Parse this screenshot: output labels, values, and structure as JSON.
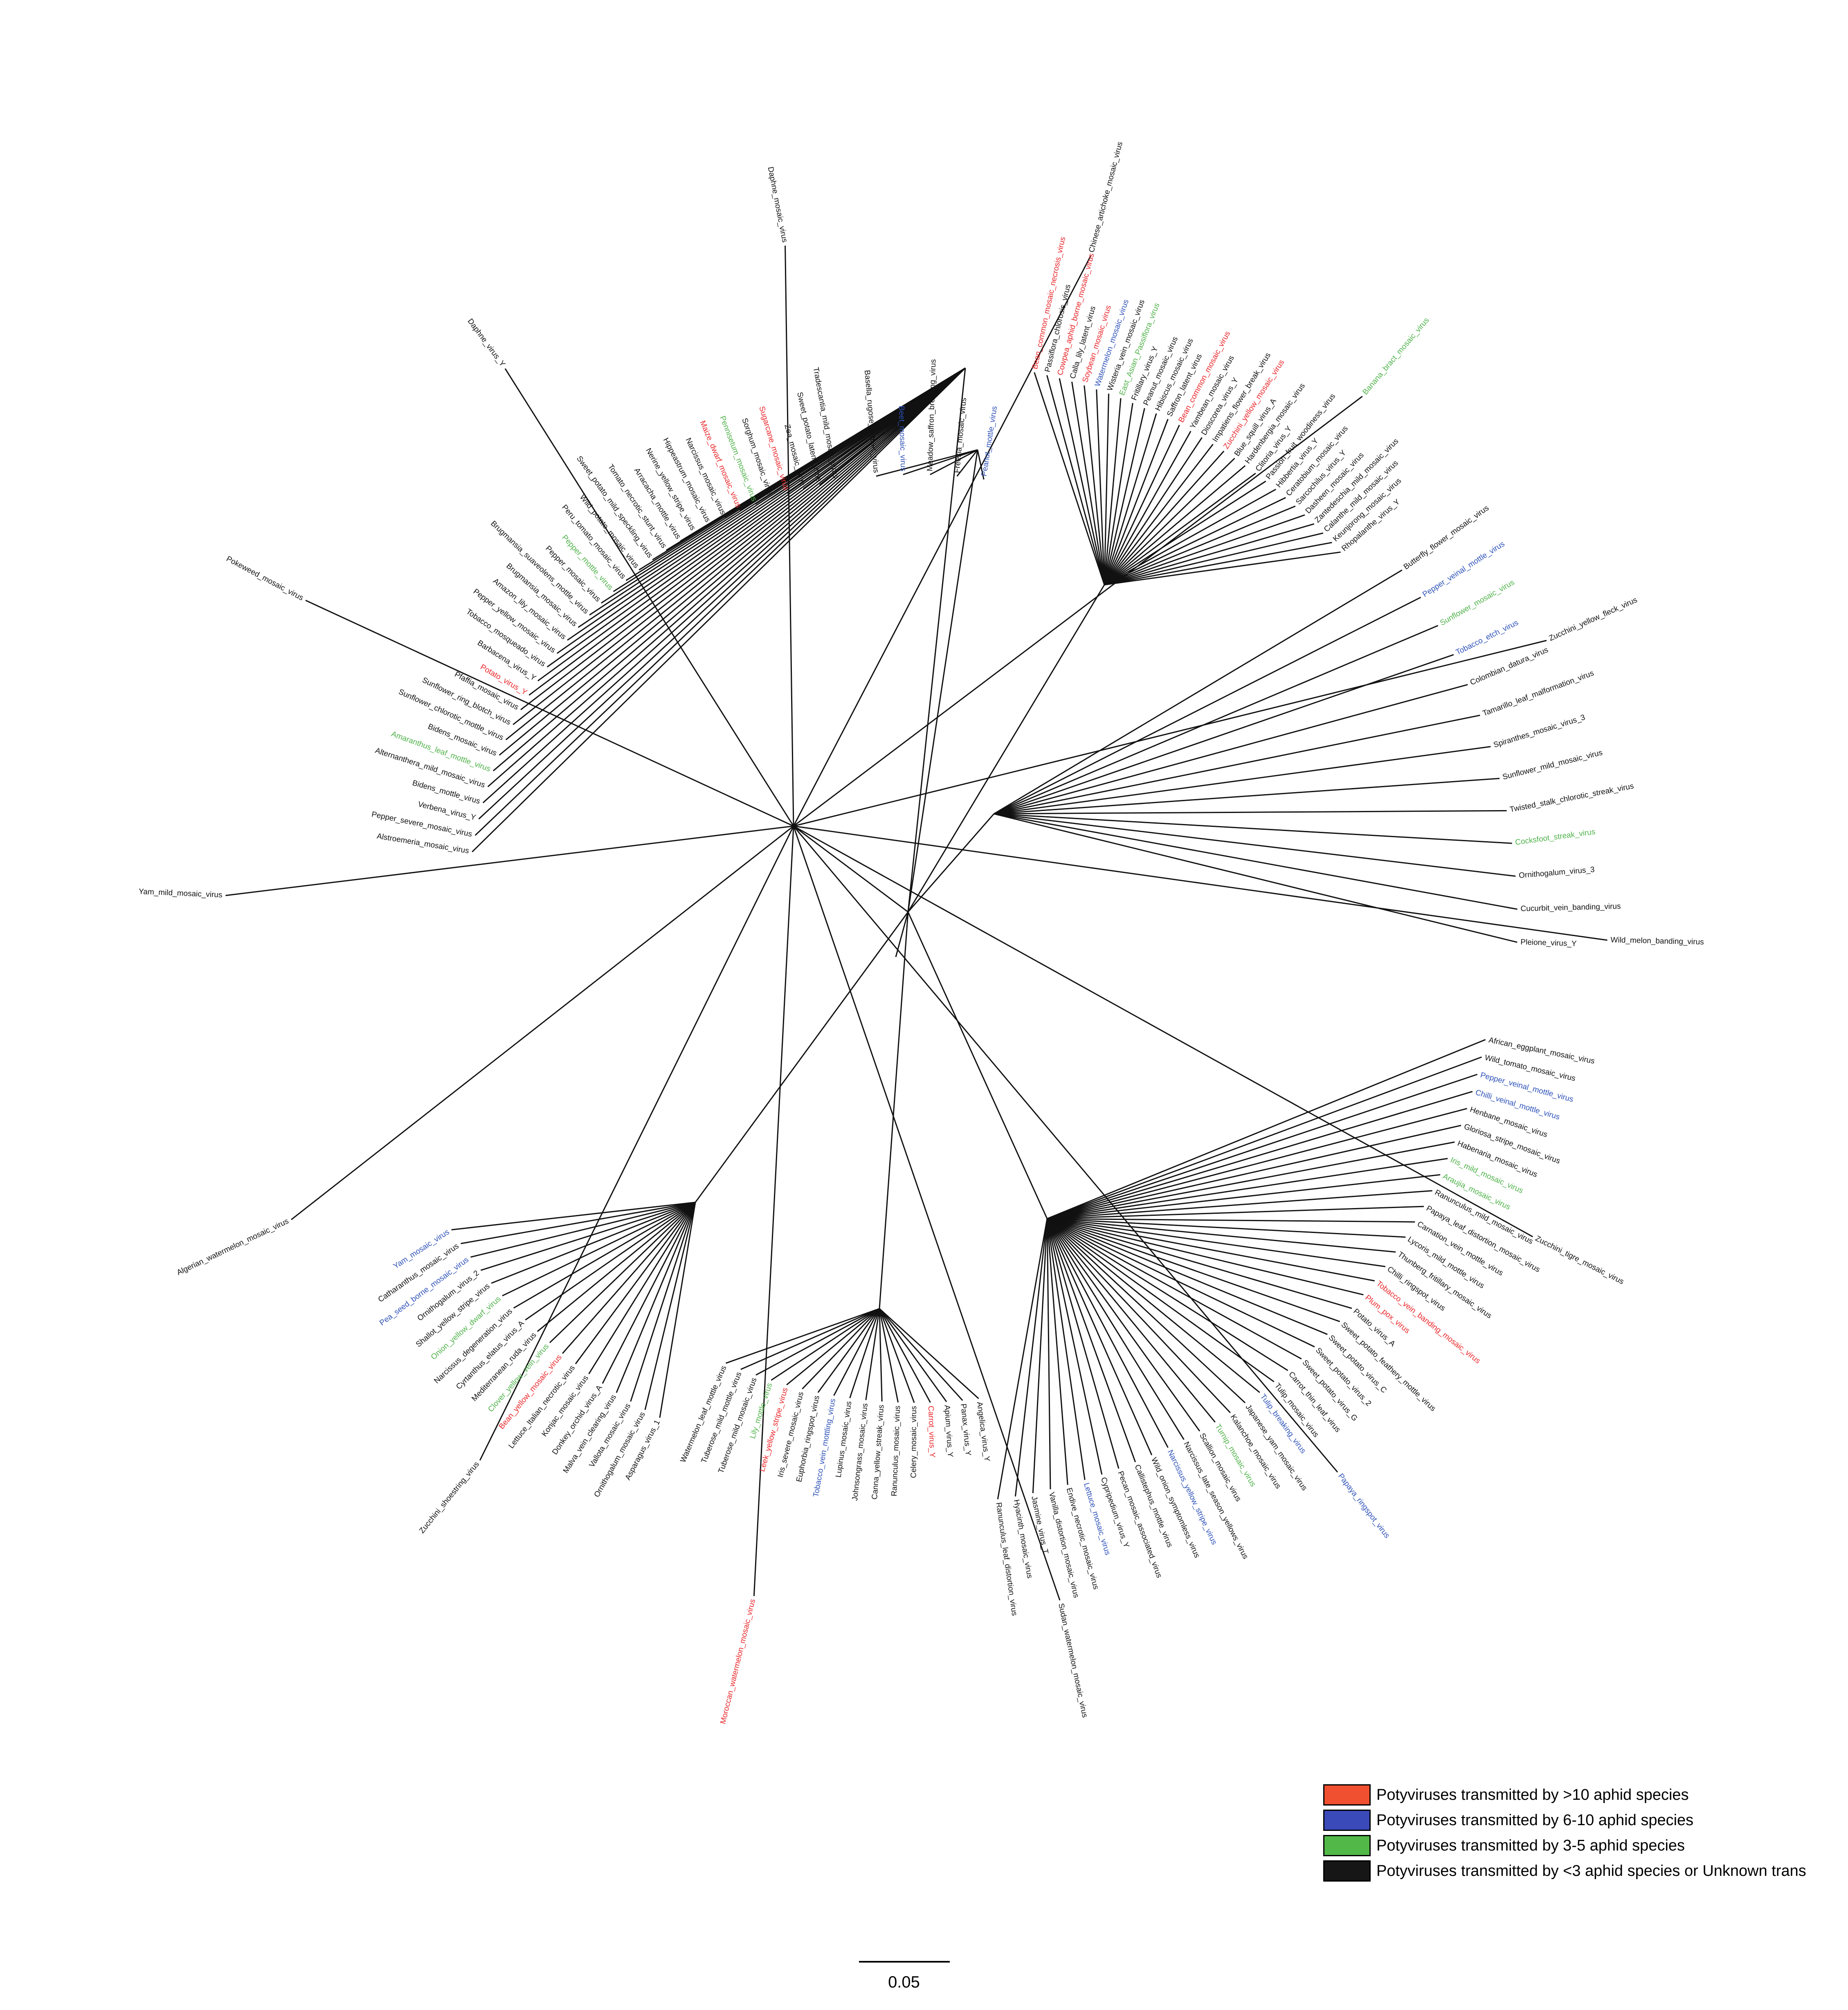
{
  "colors": {
    "red": "#e8262a",
    "blue": "#2e52b8",
    "green": "#4fb24a",
    "black": "#111111"
  },
  "legend": [
    {
      "label": "Potyviruses transmitted by >10 aphid species",
      "color": "#f0502f"
    },
    {
      "label": "Potyviruses transmitted by 6-10 aphid species",
      "color": "#3a4ab8"
    },
    {
      "label": "Potyviruses transmitted by 3-5 aphid species",
      "color": "#52b848"
    },
    {
      "label": "Potyviruses transmitted by <3 aphid species or Unknown trans",
      "color": "#161616"
    }
  ],
  "scale_bar": {
    "label": "0.05"
  },
  "clades": [
    {
      "name": "top-left",
      "leaves": [
        [
          "Tradescantia_mild_mosaic_virus",
          "black"
        ],
        [
          "Sweet_potato_latent_virus",
          "black"
        ],
        [
          "Zea_mosaic_virus",
          "black"
        ],
        [
          "Sugarcane_mosaic_virus",
          "red"
        ],
        [
          "Sorghum_mosaic_virus",
          "black"
        ],
        [
          "Pennisetum_mosaic_virus",
          "green"
        ],
        [
          "Maize_dwarf_mosaic_virus",
          "red"
        ],
        [
          "Narcissus_mosaic_virus",
          "black"
        ],
        [
          "Hippeastrum_mosaic_virus",
          "black"
        ],
        [
          "Nerine_yellow_stripe_virus",
          "black"
        ],
        [
          "Arracacha_mottle_virus",
          "black"
        ],
        [
          "Tomato_necrotic_stunt_virus",
          "black"
        ],
        [
          "Sweet_potato_mild_speckling_virus",
          "black"
        ],
        [
          "Wild_potato_mosaic_virus",
          "black"
        ],
        [
          "Peru_tomato_mosaic_virus",
          "black"
        ],
        [
          "Pepper_mottle_virus",
          "green"
        ],
        [
          "Pepper_mosaic_virus",
          "black"
        ],
        [
          "Brugmansia_suaveolens_mottle_virus",
          "black"
        ],
        [
          "Brugmansia_mosaic_virus",
          "black"
        ],
        [
          "Amazon_lily_mosaic_virus",
          "black"
        ],
        [
          "Pepper_yellow_mosaic_virus",
          "black"
        ],
        [
          "Tobacco_mosqueado_virus",
          "black"
        ],
        [
          "Barbacena_virus_Y",
          "black"
        ],
        [
          "Potato_virus_Y",
          "red"
        ],
        [
          "Pfaffia_mosaic_virus",
          "black"
        ],
        [
          "Sunflower_ring_blotch_virus",
          "black"
        ],
        [
          "Sunflower_chlorotic_mottle_virus",
          "black"
        ],
        [
          "Bidens_mosaic_virus",
          "black"
        ],
        [
          "Amaranthus_leaf_mottle_virus",
          "green"
        ],
        [
          "Alternanthera_mild_mosaic_virus",
          "black"
        ],
        [
          "Bidens_mottle_virus",
          "black"
        ],
        [
          "Verbena_virus_Y",
          "black"
        ],
        [
          "Pepper_severe_mosaic_virus",
          "black"
        ],
        [
          "Alstroemeria_mosaic_virus",
          "black"
        ]
      ]
    },
    {
      "name": "left",
      "leaves": [
        [
          "Yam_mild_mosaic_virus",
          "black"
        ],
        [
          "Pokeweed_mosaic_virus",
          "black"
        ],
        [
          "Daphne_virus_Y",
          "black"
        ],
        [
          "Daphne_mosaic_virus",
          "black"
        ],
        [
          "Chinese_artichoke_mosaic_virus",
          "black"
        ],
        [
          "Banana_bract_mosaic_virus",
          "green"
        ],
        [
          "Zucchini_yellow_fleck_virus",
          "black"
        ],
        [
          "Wild_melon_banding_virus",
          "black"
        ],
        [
          "Zucchini_tigre_mosaic_virus",
          "black"
        ],
        [
          "Papaya_ringspot_virus",
          "blue"
        ],
        [
          "Sudan_watermelon_mosaic_virus",
          "black"
        ],
        [
          "Moroccan_watermelon_mosaic_virus",
          "red"
        ],
        [
          "Zucchini_shoestring_virus",
          "black"
        ],
        [
          "Algerian_watermelon_mosaic_virus",
          "black"
        ]
      ]
    },
    {
      "name": "bottom-left",
      "leaves": [
        [
          "Yam_mosaic_virus",
          "blue"
        ],
        [
          "Catharanthus_mosaic_virus",
          "black"
        ],
        [
          "Pea_seed_borne_mosaic_virus",
          "blue"
        ],
        [
          "Ornithogalum_virus_2",
          "black"
        ],
        [
          "Shallot_yellow_stripe_virus",
          "black"
        ],
        [
          "Onion_yellow_dwarf_virus",
          "green"
        ],
        [
          "Narcissus_degeneration_virus",
          "black"
        ],
        [
          "Cyrtanthus_elatus_virus_A",
          "black"
        ],
        [
          "Mediterranean_ruda_virus",
          "black"
        ],
        [
          "Clover_yellow_vein_virus",
          "green"
        ],
        [
          "Bean_yellow_mosaic_virus",
          "red"
        ],
        [
          "Lettuce_Italian_necrotic_virus",
          "black"
        ],
        [
          "Konjac_mosaic_virus",
          "black"
        ],
        [
          "Donkey_orchid_virus_A",
          "black"
        ],
        [
          "Malva_vein_clearing_virus",
          "black"
        ],
        [
          "Vallota_mosaic_virus",
          "black"
        ],
        [
          "Ornithogalum_mosaic_virus",
          "black"
        ],
        [
          "Asparagus_virus_1",
          "black"
        ]
      ]
    },
    {
      "name": "bottom",
      "leaves": [
        [
          "Watermelon_leaf_mottle_virus",
          "black"
        ],
        [
          "Tuberose_mild_mottle_virus",
          "black"
        ],
        [
          "Tuberose_mild_mosaic_virus",
          "black"
        ],
        [
          "Lily_mottle_virus",
          "green"
        ],
        [
          "Leek_yellow_stripe_virus",
          "red"
        ],
        [
          "Iris_severe_mosaic_virus",
          "black"
        ],
        [
          "Euphorbia_ringspot_virus",
          "black"
        ],
        [
          "Tobacco_vein_mottling_virus",
          "blue"
        ],
        [
          "Lupinus_mosaic_virus",
          "black"
        ],
        [
          "Johnsongrass_mosaic_virus",
          "black"
        ],
        [
          "Canna_yellow_streak_virus",
          "black"
        ],
        [
          "Ranunculus_mosaic_virus",
          "black"
        ],
        [
          "Celery_mosaic_virus",
          "black"
        ],
        [
          "Carrot_virus_Y",
          "red"
        ],
        [
          "Apium_virus_Y",
          "black"
        ],
        [
          "Panax_virus_Y",
          "black"
        ],
        [
          "Angelica_virus_Y",
          "black"
        ]
      ]
    },
    {
      "name": "bottom-right",
      "leaves": [
        [
          "Ranunculus_leaf_distortion_virus",
          "black"
        ],
        [
          "Hyacinth_mosaic_virus",
          "black"
        ],
        [
          "Jasmine_virus_T",
          "black"
        ],
        [
          "Vanilla_distortion_mosaic_virus",
          "black"
        ],
        [
          "Endive_necrotic_mosaic_virus",
          "black"
        ],
        [
          "Lettuce_mosaic_virus",
          "blue"
        ],
        [
          "Cypripedium_virus_Y",
          "black"
        ],
        [
          "Pecan_mosaic_associated_virus",
          "black"
        ],
        [
          "Callistephus_mottle_virus",
          "black"
        ],
        [
          "Wild_onion_symptomless_virus",
          "black"
        ],
        [
          "Narcissus_yellow_stripe_virus",
          "blue"
        ],
        [
          "Narcissus_late_season_yellows_virus",
          "black"
        ],
        [
          "Scallion_mosaic_virus",
          "black"
        ],
        [
          "Turnip_mosaic_virus",
          "green"
        ],
        [
          "Kalanchoe_mosaic_virus",
          "black"
        ],
        [
          "Japanese_yam_mosaic_virus",
          "black"
        ],
        [
          "Tulip_breaking_virus",
          "blue"
        ],
        [
          "Tulip_mosaic_virus",
          "black"
        ],
        [
          "Carrot_thin_leaf_virus",
          "black"
        ],
        [
          "Sweet_potato_virus_G",
          "black"
        ],
        [
          "Sweet_potato_virus_2",
          "black"
        ],
        [
          "Sweet_potato_virus_C",
          "black"
        ],
        [
          "Sweet_potato_feathery_mottle_virus",
          "black"
        ],
        [
          "Potato_virus_A",
          "black"
        ],
        [
          "Plum_pox_virus",
          "red"
        ],
        [
          "Tobacco_vein_banding_mosaic_virus",
          "red"
        ],
        [
          "Chilli_ringspot_virus",
          "black"
        ],
        [
          "Thunberg_fritillary_mosaic_virus",
          "black"
        ],
        [
          "Lycoris_mild_mottle_virus",
          "black"
        ],
        [
          "Carnation_vein_mottle_virus",
          "black"
        ],
        [
          "Papaya_leaf_distortion_mosaic_virus",
          "black"
        ],
        [
          "Ranunculus_mild_mosaic_virus",
          "black"
        ],
        [
          "Araujia_mosaic_virus",
          "green"
        ],
        [
          "Iris_mild_mosaic_virus",
          "green"
        ],
        [
          "Habenaria_mosaic_virus",
          "black"
        ],
        [
          "Gloriosa_stripe_mosaic_virus",
          "black"
        ],
        [
          "Henbane_mosaic_virus",
          "black"
        ],
        [
          "Chilli_veinal_mottle_virus",
          "blue"
        ],
        [
          "Pepper_veinal_mottle_virus",
          "blue"
        ],
        [
          "Wild_tomato_mosaic_virus",
          "black"
        ],
        [
          "African_eggplant_mosaic_virus",
          "black"
        ]
      ]
    },
    {
      "name": "right",
      "leaves": [
        [
          "Pleione_virus_Y",
          "black"
        ],
        [
          "Cucurbit_vein_banding_virus",
          "black"
        ],
        [
          "Ornithogalum_virus_3",
          "black"
        ],
        [
          "Cocksfoot_streak_virus",
          "green"
        ],
        [
          "Twisted_stalk_chlorotic_streak_virus",
          "black"
        ],
        [
          "Sunflower_mild_mosaic_virus",
          "black"
        ],
        [
          "Spiranthes_mosaic_virus_3",
          "black"
        ],
        [
          "Tamarillo_leaf_malformation_virus",
          "black"
        ],
        [
          "Colombian_datura_virus",
          "black"
        ],
        [
          "Tobacco_etch_virus",
          "blue"
        ],
        [
          "Sunflower_mosaic_virus",
          "green"
        ],
        [
          "Pepper_veinal_mottle_virus",
          "blue"
        ],
        [
          "Butterfly_flower_mosaic_virus",
          "black"
        ]
      ]
    },
    {
      "name": "top-right",
      "leaves": [
        [
          "Rhopalanthe_virus_Y",
          "black"
        ],
        [
          "Keunjorong_mosaic_virus",
          "black"
        ],
        [
          "Calanthe_mild_mosaic_virus",
          "black"
        ],
        [
          "Zantedeschia_mild_mosaic_virus",
          "black"
        ],
        [
          "Dasheen_mosaic_virus",
          "black"
        ],
        [
          "Sarcochilus_virus_Y",
          "black"
        ],
        [
          "Ceratobium_mosaic_virus",
          "black"
        ],
        [
          "Hibbertia_virus_Y",
          "black"
        ],
        [
          "Passion_fruit_woodiness_virus",
          "black"
        ],
        [
          "Clitoria_virus_Y",
          "black"
        ],
        [
          "Hardenbergia_mosaic_virus",
          "black"
        ],
        [
          "Blue_squill_virus_A",
          "black"
        ],
        [
          "Zucchini_yellow_mosaic_virus",
          "red"
        ],
        [
          "Impatiens_flower_break_virus",
          "black"
        ],
        [
          "Dioscorea_virus_Y",
          "black"
        ],
        [
          "Yambean_mosaic_virus",
          "black"
        ],
        [
          "Bean_common_mosaic_virus",
          "red"
        ],
        [
          "Saffron_latent_virus",
          "black"
        ],
        [
          "Hibiscus_mosaic_virus",
          "black"
        ],
        [
          "Peanut_mosaic_virus",
          "black"
        ],
        [
          "Fritillary_virus_Y",
          "black"
        ],
        [
          "East_Asian_Passiflora_virus",
          "green"
        ],
        [
          "Wisteria_vein_mosaic_virus",
          "black"
        ],
        [
          "Watermelon_mosaic_virus",
          "blue"
        ],
        [
          "Soybean_mosaic_virus",
          "red"
        ],
        [
          "Calla_lily_latent_virus",
          "black"
        ],
        [
          "Cowpea_aphid_borne_mosaic_virus",
          "red"
        ],
        [
          "Passiflora_chlorosis_virus",
          "black"
        ],
        [
          "Bean_common_mosaic_necrosis_virus",
          "red"
        ]
      ]
    },
    {
      "name": "top",
      "leaves": [
        [
          "Peanut_mottle_virus",
          "blue"
        ],
        [
          "Freesia_mosaic_virus",
          "black"
        ],
        [
          "Meadow_saffron_breaking_virus",
          "black"
        ],
        [
          "Beet_mosaic_virus",
          "blue"
        ],
        [
          "Basella_rugose_mosaic_virus",
          "black"
        ]
      ]
    }
  ]
}
